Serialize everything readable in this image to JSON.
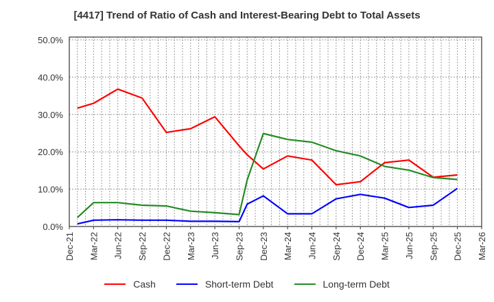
{
  "title": "[4417]  Trend of Ratio of Cash and Interest-Bearing Debt to Total Assets",
  "legend": [
    {
      "label": "Cash",
      "color": "#ff0000"
    },
    {
      "label": "Short-term Debt",
      "color": "#0000ff"
    },
    {
      "label": "Long-term Debt",
      "color": "#228b22"
    }
  ],
  "chart_data": {
    "type": "line",
    "title": "[4417]  Trend of Ratio of Cash and Interest-Bearing Debt to Total Assets",
    "xlabel": "",
    "ylabel": "",
    "ylim": [
      0,
      50
    ],
    "y_ticks": [
      "0.0%",
      "10.0%",
      "20.0%",
      "30.0%",
      "40.0%",
      "50.0%"
    ],
    "x_ticks": [
      "Dec-21",
      "Mar-22",
      "Jun-22",
      "Sep-22",
      "Dec-22",
      "Mar-23",
      "Jun-23",
      "Sep-23",
      "Dec-23",
      "Mar-24",
      "Jun-24",
      "Sep-24",
      "Dec-24",
      "Mar-25",
      "Jun-25",
      "Sep-25",
      "Dec-25",
      "Mar-26"
    ],
    "grid": true,
    "legend_position": "bottom",
    "x": [
      "Jan-22",
      "Mar-22",
      "Jun-22",
      "Sep-22",
      "Dec-22",
      "Mar-23",
      "Jun-23",
      "Sep-23",
      "Oct-23",
      "Dec-23",
      "Mar-24",
      "Jun-24",
      "Sep-24",
      "Dec-24",
      "Mar-25",
      "Jun-25",
      "Sep-25",
      "Dec-25"
    ],
    "x_month_index": [
      1,
      3,
      6,
      9,
      12,
      15,
      18,
      21,
      22,
      24,
      27,
      30,
      33,
      36,
      39,
      42,
      45,
      48
    ],
    "series": [
      {
        "name": "Cash",
        "color": "#ff0000",
        "values": [
          31.7,
          33.0,
          36.8,
          34.4,
          25.2,
          26.2,
          29.4,
          21.6,
          19.2,
          15.4,
          18.9,
          17.8,
          11.2,
          12.0,
          17.1,
          17.8,
          13.2,
          13.8
        ]
      },
      {
        "name": "Short-term Debt",
        "color": "#0000ff",
        "values": [
          0.7,
          1.7,
          1.8,
          1.7,
          1.7,
          1.4,
          1.4,
          1.3,
          6.0,
          8.2,
          3.4,
          3.4,
          7.4,
          8.6,
          7.6,
          5.1,
          5.7,
          10.2
        ]
      },
      {
        "name": "Long-term Debt",
        "color": "#228b22",
        "values": [
          2.4,
          6.4,
          6.4,
          5.7,
          5.5,
          4.1,
          3.7,
          3.2,
          12.5,
          24.9,
          23.3,
          22.6,
          20.3,
          18.9,
          16.1,
          15.1,
          13.1,
          12.6
        ]
      }
    ]
  }
}
